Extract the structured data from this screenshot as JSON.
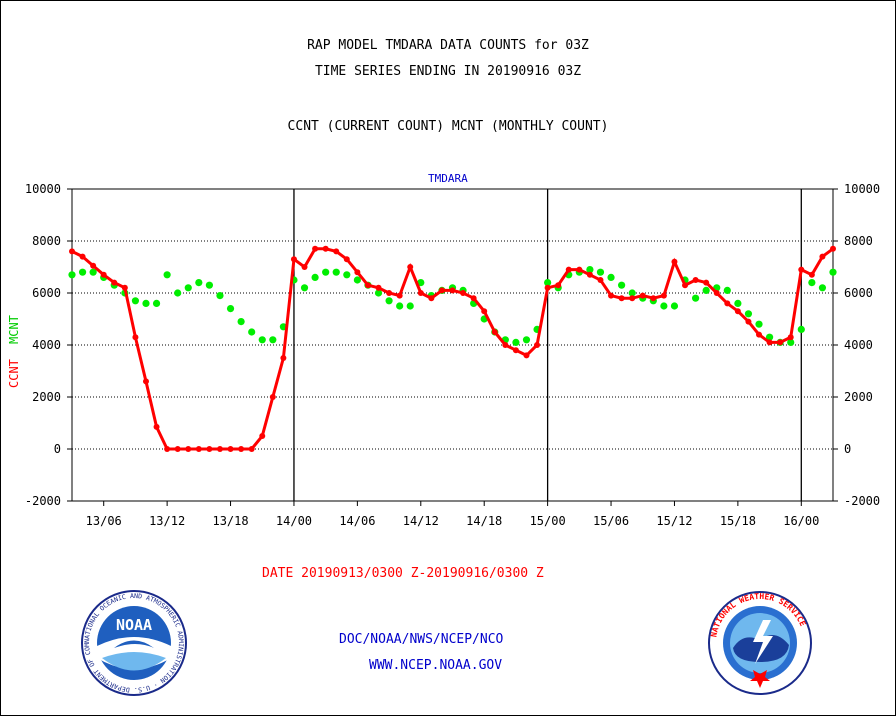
{
  "chart_data": {
    "type": "line",
    "title": "RAP MODEL TMDARA DATA COUNTS for 03Z",
    "subtitle": "TIME SERIES ENDING IN 20190916 03Z",
    "description": "CCNT (CURRENT COUNT) MCNT (MONTHLY COUNT)",
    "panel_label": "TMDARA",
    "ylabel_left_ccnt": "CCNT",
    "ylabel_left_mcnt": "MCNT",
    "xlabel": "DATE 20190913/0300 Z-20190916/0300 Z",
    "ylim": [
      -2000,
      10000
    ],
    "yticks": [
      -2000,
      0,
      2000,
      4000,
      6000,
      8000,
      10000
    ],
    "xlim": [
      3,
      75
    ],
    "xticks": [
      {
        "x": 6,
        "label": "13/06"
      },
      {
        "x": 12,
        "label": "13/12"
      },
      {
        "x": 18,
        "label": "13/18"
      },
      {
        "x": 24,
        "label": "14/00"
      },
      {
        "x": 30,
        "label": "14/06"
      },
      {
        "x": 36,
        "label": "14/12"
      },
      {
        "x": 42,
        "label": "14/18"
      },
      {
        "x": 48,
        "label": "15/00"
      },
      {
        "x": 54,
        "label": "15/06"
      },
      {
        "x": 60,
        "label": "15/12"
      },
      {
        "x": 66,
        "label": "15/18"
      },
      {
        "x": 72,
        "label": "16/00"
      }
    ],
    "day_boundaries": [
      24,
      48,
      72
    ],
    "grid": "horizontal dotted",
    "series": [
      {
        "name": "CCNT",
        "color": "#ff0000",
        "x": [
          3,
          4,
          5,
          6,
          7,
          8,
          9,
          10,
          11,
          12,
          13,
          14,
          15,
          16,
          17,
          18,
          19,
          20,
          21,
          22,
          23,
          24,
          25,
          26,
          27,
          28,
          29,
          30,
          31,
          32,
          33,
          34,
          35,
          36,
          37,
          38,
          39,
          40,
          41,
          42,
          43,
          44,
          45,
          46,
          47,
          48,
          49,
          50,
          51,
          52,
          53,
          54,
          55,
          56,
          57,
          58,
          59,
          60,
          61,
          62,
          63,
          64,
          65,
          66,
          67,
          68,
          69,
          70,
          71,
          72,
          73,
          74,
          75
        ],
        "values": [
          7600,
          7400,
          7050,
          6700,
          6400,
          6200,
          4300,
          2600,
          850,
          0,
          0,
          0,
          0,
          0,
          0,
          0,
          0,
          0,
          500,
          2000,
          3500,
          7300,
          7000,
          7700,
          7700,
          7600,
          7300,
          6800,
          6300,
          6200,
          6000,
          5900,
          7000,
          6000,
          5800,
          6100,
          6100,
          6000,
          5800,
          5300,
          4500,
          4000,
          3800,
          3600,
          4000,
          6200,
          6300,
          6900,
          6900,
          6700,
          6500,
          5900,
          5800,
          5800,
          5900,
          5800,
          5900,
          7200,
          6300,
          6500,
          6400,
          6000,
          5600,
          5300,
          4900,
          4400,
          4100,
          4100,
          4300,
          6900,
          6700,
          7400,
          7700
        ]
      },
      {
        "name": "MCNT",
        "color": "#00ee00",
        "x": [
          3,
          4,
          5,
          6,
          7,
          8,
          9,
          10,
          11,
          12,
          13,
          14,
          15,
          16,
          17,
          18,
          19,
          20,
          21,
          22,
          23,
          24,
          25,
          26,
          27,
          28,
          29,
          30,
          31,
          32,
          33,
          34,
          35,
          36,
          37,
          38,
          39,
          40,
          41,
          42,
          43,
          44,
          45,
          46,
          47,
          48,
          49,
          50,
          51,
          52,
          53,
          54,
          55,
          56,
          57,
          58,
          59,
          60,
          61,
          62,
          63,
          64,
          65,
          66,
          67,
          68,
          69,
          70,
          71,
          72,
          73,
          74,
          75
        ],
        "values": [
          6700,
          6800,
          6800,
          6600,
          6300,
          6000,
          5700,
          5600,
          5600,
          6700,
          6000,
          6200,
          6400,
          6300,
          5900,
          5400,
          4900,
          4500,
          4200,
          4200,
          4700,
          6500,
          6200,
          6600,
          6800,
          6800,
          6700,
          6500,
          6300,
          6000,
          5700,
          5500,
          5500,
          6400,
          5900,
          6100,
          6200,
          6100,
          5600,
          5000,
          4500,
          4200,
          4100,
          4200,
          4600,
          6400,
          6200,
          6700,
          6800,
          6900,
          6800,
          6600,
          6300,
          6000,
          5800,
          5700,
          5500,
          5500,
          6500,
          5800,
          6100,
          6200,
          6100,
          5600,
          5200,
          4800,
          4300,
          4100,
          4100,
          4600,
          6400,
          6200,
          6800
        ]
      }
    ]
  },
  "footer": {
    "credit": "DOC/NOAA/NWS/NCEP/NCO",
    "url": "WWW.NCEP.NOAA.GOV"
  },
  "logos": {
    "noaa_text": "NOAA",
    "noaa_ring": "NATIONAL OCEANIC AND ATMOSPHERIC ADMINISTRATION · U.S. DEPARTMENT OF COMMERCE ·",
    "nws_ring": "NATIONAL WEATHER SERVICE"
  },
  "colors": {
    "ccnt": "#ff0000",
    "mcnt": "#00ee00",
    "footer_text": "#0000cc",
    "panel_label": "#0000cc"
  }
}
